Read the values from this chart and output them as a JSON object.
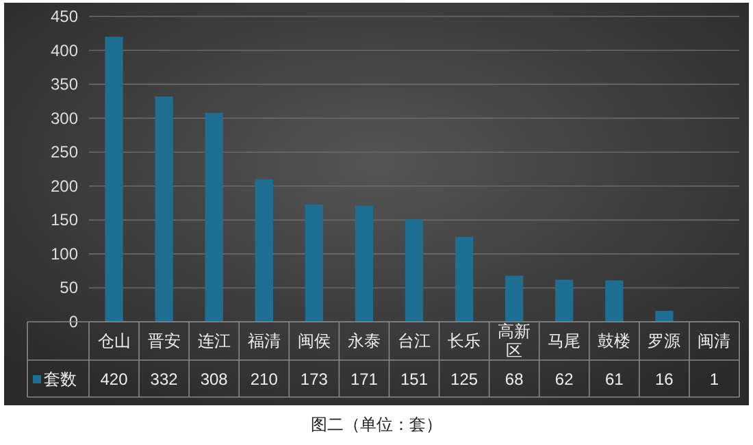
{
  "chart_data": {
    "type": "bar",
    "categories": [
      "仓山",
      "晋安",
      "连江",
      "福清",
      "闽侯",
      "永泰",
      "台江",
      "长乐",
      "高新区",
      "马尾",
      "鼓楼",
      "罗源",
      "闽清"
    ],
    "series": [
      {
        "name": "套数",
        "color": "#1f6f93",
        "values": [
          420,
          332,
          308,
          210,
          173,
          171,
          151,
          125,
          68,
          62,
          61,
          16,
          1
        ]
      }
    ],
    "ylim": [
      0,
      450
    ],
    "yticks": [
      0,
      50,
      100,
      150,
      200,
      250,
      300,
      350,
      400,
      450
    ],
    "grid": "y",
    "legend": "bottom",
    "data_labels": true,
    "annotations": [
      "图二（单位：套）"
    ]
  }
}
